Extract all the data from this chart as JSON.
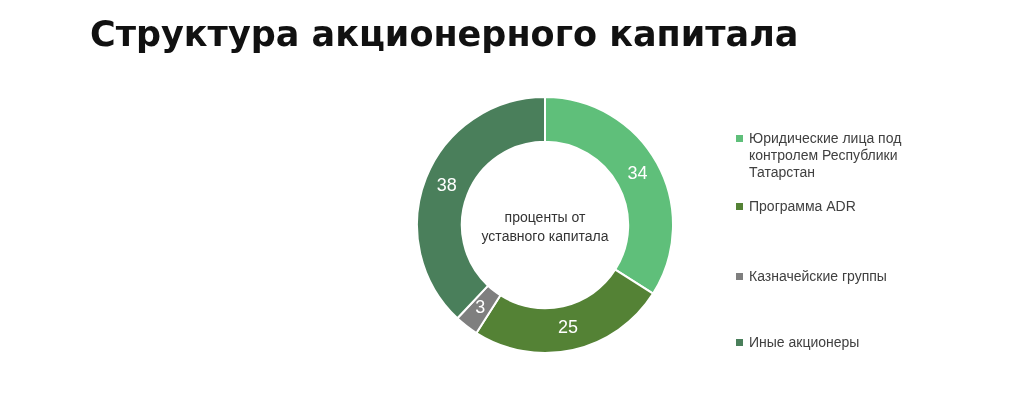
{
  "chart_data": {
    "type": "donut",
    "title": "Структура акционерного капитала",
    "categories": [
      "Юридические лица под контролем Республики Татарстан",
      "Программа ADR",
      "Казначейские группы",
      "Иные акционеры"
    ],
    "values": [
      34,
      25,
      3,
      38
    ],
    "colors": [
      "#5fbf7a",
      "#548235",
      "#7f7f7f",
      "#4a7f5b"
    ],
    "data_labels": true,
    "legend": "right",
    "annotations": [
      "проценты от уставного капитала"
    ]
  }
}
